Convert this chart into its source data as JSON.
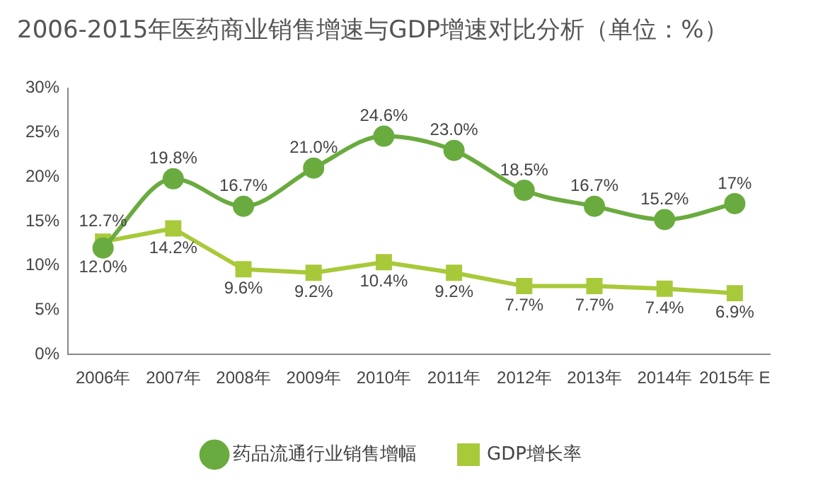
{
  "chart_data": {
    "type": "line",
    "title": "2006-2015年医药商业销售增速与GDP增速对比分析（单位：%）",
    "categories": [
      "2006年",
      "2007年",
      "2008年",
      "2009年",
      "2010年",
      "2011年",
      "2012年",
      "2013年",
      "2014年",
      "2015年 E"
    ],
    "series": [
      {
        "name": "药品流通行业销售增幅",
        "color": "#6aab3f",
        "marker": "circle",
        "values": [
          12.0,
          19.8,
          16.7,
          21.0,
          24.6,
          23.0,
          18.5,
          16.7,
          15.2,
          17
        ],
        "value_labels": [
          "12.0%",
          "19.8%",
          "16.7%",
          "21.0%",
          "24.6%",
          "23.0%",
          "18.5%",
          "16.7%",
          "15.2%",
          "17%"
        ]
      },
      {
        "name": "GDP增长率",
        "color": "#a8c93a",
        "marker": "square",
        "values": [
          12.7,
          14.2,
          9.6,
          9.2,
          10.4,
          9.2,
          7.7,
          7.7,
          7.4,
          6.9
        ],
        "value_labels": [
          "12.7%",
          "14.2%",
          "9.6%",
          "9.2%",
          "10.4%",
          "9.2%",
          "7.7%",
          "7.7%",
          "7.4%",
          "6.9%"
        ]
      }
    ],
    "ylim": [
      0,
      30
    ],
    "yticks": [
      {
        "value": 0,
        "label": "0%"
      },
      {
        "value": 5,
        "label": "5%"
      },
      {
        "value": 10,
        "label": "10%"
      },
      {
        "value": 15,
        "label": "15%"
      },
      {
        "value": 20,
        "label": "20%"
      },
      {
        "value": 25,
        "label": "25%"
      },
      {
        "value": 30,
        "label": "30%"
      }
    ],
    "grid": false,
    "legend": "bottom"
  }
}
